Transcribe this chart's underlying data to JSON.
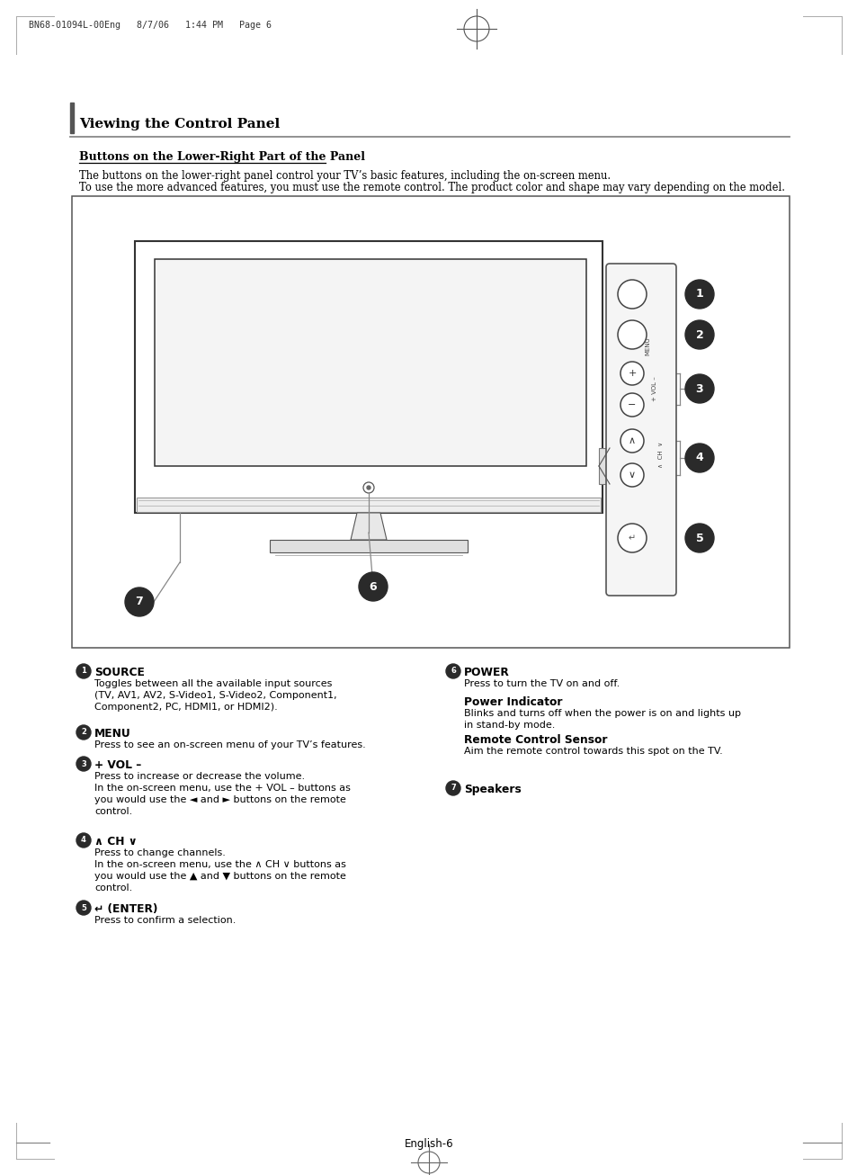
{
  "page_header": "BN68-01094L-00Eng   8/7/06   1:44 PM   Page 6",
  "section_title": "Viewing the Control Panel",
  "subsection_title": "Buttons on the Lower-Right Part of the Panel",
  "intro_text1": "The buttons on the lower-right panel control your TV’s basic features, including the on-screen menu.",
  "intro_text2": "To use the more advanced features, you must use the remote control. The product color and shape may vary depending on the model.",
  "footer_text": "English-6",
  "background_color": "#ffffff"
}
